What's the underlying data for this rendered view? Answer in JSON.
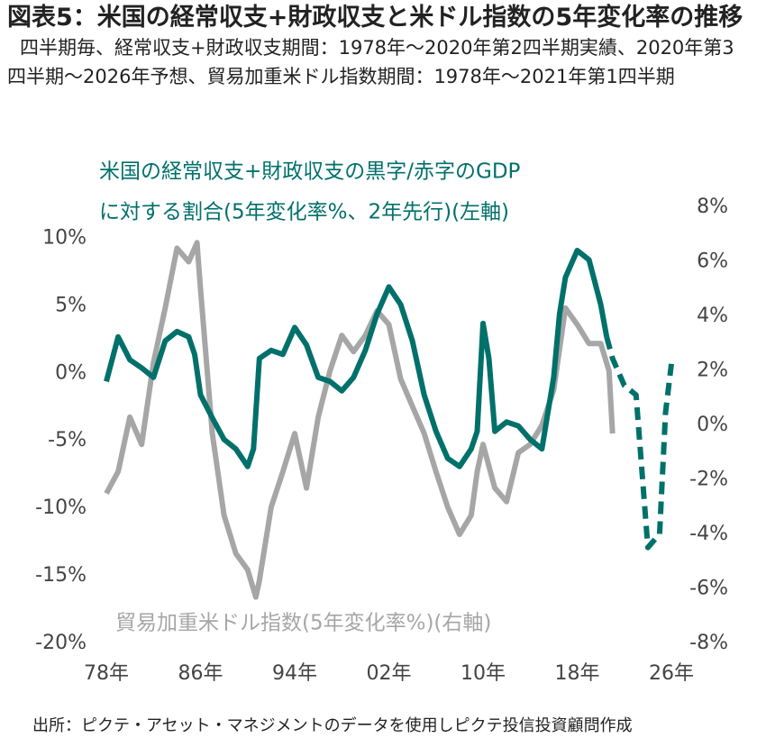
{
  "chart_data": {
    "type": "line",
    "title": "図表5：米国の経常収支+財政収支と米ドル指数の5年変化率の推移",
    "subtitle": "四半期毎、経常収支+財政収支期間：1978年～2020年第2四半期実績、2020年第3四半期～2026年予想、貿易加重米ドル指数期間：1978年～2021年第1四半期",
    "annotations": [
      "米国の経常収支+財政収支の黒字/赤字のGDP",
      "に対する割合(5年変化率%、2年先行)(左軸)",
      "貿易加重米ドル指数(5年変化率%)(右軸)"
    ],
    "source": "出所：ピクテ・アセット・マネジメントのデータを使用しピクテ投信投資顧問作成",
    "xlim": [
      1978,
      2026
    ],
    "xticks": [
      {
        "value": 1978,
        "label": "78年"
      },
      {
        "value": 1986,
        "label": "86年"
      },
      {
        "value": 1994,
        "label": "94年"
      },
      {
        "value": 2002,
        "label": "02年"
      },
      {
        "value": 2010,
        "label": "10年"
      },
      {
        "value": 2018,
        "label": "18年"
      },
      {
        "value": 2026,
        "label": "26年"
      }
    ],
    "ylim": [
      -20,
      12.3
    ],
    "yticks": [
      {
        "value": 10,
        "label": "10%"
      },
      {
        "value": 5,
        "label": "5%"
      },
      {
        "value": 0,
        "label": "0%"
      },
      {
        "value": -5,
        "label": "-5%"
      },
      {
        "value": -10,
        "label": "-10%"
      },
      {
        "value": -15,
        "label": "-15%"
      },
      {
        "value": -20,
        "label": "-20%"
      }
    ],
    "y2lim": [
      -8,
      8
    ],
    "y2ticks": [
      {
        "value": 8,
        "label": "8%"
      },
      {
        "value": 6,
        "label": "6%"
      },
      {
        "value": 4,
        "label": "4%"
      },
      {
        "value": 2,
        "label": "2%"
      },
      {
        "value": 0,
        "label": "0%"
      },
      {
        "value": -2,
        "label": "-2%"
      },
      {
        "value": -4,
        "label": "-4%"
      },
      {
        "value": -6,
        "label": "-6%"
      },
      {
        "value": -8,
        "label": "-8%"
      }
    ],
    "series": [
      {
        "color": "#00706b",
        "dashed": false,
        "x": [
          1978,
          1979,
          1980,
          1981,
          1982,
          1983,
          1984,
          1985,
          1985.5,
          1986,
          1987,
          1988,
          1989,
          1990,
          1990.5,
          1991,
          1992,
          1993,
          1994,
          1995,
          1996,
          1997,
          1998,
          1999,
          2000,
          2001,
          2002,
          2003,
          2004,
          2005,
          2006,
          2007,
          2008,
          2009,
          2009.5,
          2010,
          2010.5,
          2011,
          2012,
          2013,
          2014,
          2015,
          2016,
          2016.5,
          2017,
          2018,
          2019,
          2020,
          2020.5
        ],
        "values": [
          -0.6,
          2.7,
          1,
          0.4,
          -0.3,
          2.4,
          3.1,
          2.7,
          1.4,
          -1.6,
          -3.3,
          -4.9,
          -5.6,
          -6.9,
          -5.6,
          1.1,
          1.7,
          1.4,
          3.4,
          2.1,
          -0.3,
          -0.6,
          -1.3,
          -0.3,
          1.7,
          4.4,
          6.4,
          5.1,
          2.4,
          -1.6,
          -4.3,
          -6.3,
          -6.9,
          -5.6,
          -4.3,
          3.7,
          1.1,
          -4.3,
          -3.6,
          -3.9,
          -4.9,
          -5.6,
          -0.3,
          4.4,
          7.1,
          9.1,
          8.4,
          5.1,
          2.7
        ]
      },
      {
        "color": "#00706b",
        "dashed": true,
        "x": [
          2020.5,
          2021,
          2022,
          2023,
          2024,
          2025,
          2025.5,
          2026
        ],
        "values": [
          2.7,
          1.1,
          -0.9,
          -1.6,
          -12.9,
          -11.9,
          -2.9,
          0.7
        ]
      },
      {
        "color": "#a6a6a6",
        "dashed": false,
        "axis": "y2",
        "x": [
          1978,
          1979,
          1980,
          1981,
          1982,
          1983,
          1984,
          1985,
          1985.7,
          1986,
          1987,
          1988,
          1989,
          1990,
          1990.7,
          1991,
          1992,
          1993,
          1994,
          1995,
          1996,
          1997,
          1998,
          1999,
          2000,
          2001,
          2002,
          2003,
          2004,
          2005,
          2006,
          2007,
          2008,
          2009,
          2009.5,
          2010,
          2011,
          2012,
          2013,
          2014,
          2015,
          2016,
          2017,
          2018,
          2019,
          2020,
          2020.7,
          2021
        ],
        "values": [
          -2.5,
          -1.7,
          0.3,
          -0.7,
          2.3,
          4.3,
          6.5,
          6,
          6.7,
          5,
          -0.3,
          -3.3,
          -4.7,
          -5.3,
          -6.3,
          -5.7,
          -3,
          -1.7,
          -0.3,
          -2.3,
          0.3,
          2,
          3.3,
          2.7,
          3.3,
          4.2,
          3.7,
          1.7,
          0.7,
          -0.3,
          -1.7,
          -3,
          -4,
          -3.3,
          -1.7,
          -0.7,
          -2.3,
          -2.8,
          -1,
          -0.7,
          0,
          1.3,
          4.3,
          3.7,
          3,
          3,
          2,
          -0.3
        ]
      }
    ]
  }
}
